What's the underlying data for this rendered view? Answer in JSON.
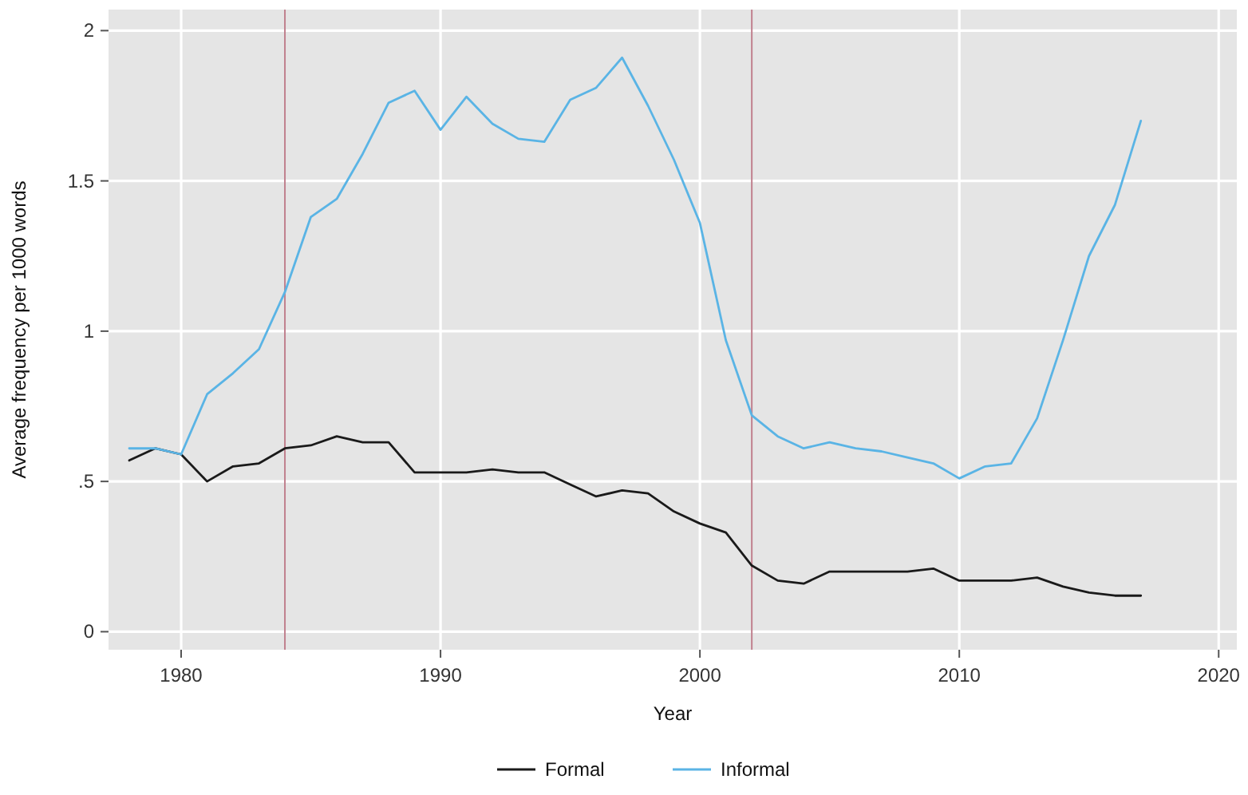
{
  "chart_data": {
    "type": "line",
    "xlabel": "Year",
    "ylabel": "Average frequency per 1000 words",
    "x": [
      1978,
      1979,
      1980,
      1981,
      1982,
      1983,
      1984,
      1985,
      1986,
      1987,
      1988,
      1989,
      1990,
      1991,
      1992,
      1993,
      1994,
      1995,
      1996,
      1997,
      1998,
      1999,
      2000,
      2001,
      2002,
      2003,
      2004,
      2005,
      2006,
      2007,
      2008,
      2009,
      2010,
      2011,
      2012,
      2013,
      2014,
      2015,
      2016,
      2017
    ],
    "series": [
      {
        "name": "Formal",
        "color": "#1a1a1a",
        "values": [
          0.57,
          0.61,
          0.59,
          0.5,
          0.55,
          0.56,
          0.61,
          0.62,
          0.65,
          0.63,
          0.63,
          0.53,
          0.53,
          0.53,
          0.54,
          0.53,
          0.53,
          0.49,
          0.45,
          0.47,
          0.46,
          0.4,
          0.36,
          0.33,
          0.22,
          0.17,
          0.16,
          0.2,
          0.2,
          0.2,
          0.2,
          0.21,
          0.17,
          0.17,
          0.17,
          0.18,
          0.15,
          0.13,
          0.12,
          0.12
        ]
      },
      {
        "name": "Informal",
        "color": "#5ab4e5",
        "values": [
          0.61,
          0.61,
          0.59,
          0.79,
          0.86,
          0.94,
          1.13,
          1.38,
          1.44,
          1.59,
          1.76,
          1.8,
          1.67,
          1.78,
          1.69,
          1.64,
          1.63,
          1.77,
          1.81,
          1.91,
          1.75,
          1.57,
          1.36,
          0.97,
          0.72,
          0.65,
          0.61,
          0.63,
          0.61,
          0.6,
          0.58,
          0.56,
          0.51,
          0.55,
          0.56,
          0.71,
          0.97,
          1.25,
          1.42,
          1.7
        ]
      }
    ],
    "xlim": [
      1977.2,
      2020.7
    ],
    "xticks": [
      1980,
      1990,
      2000,
      2010,
      2020
    ],
    "ylim": [
      -0.06,
      2.07
    ],
    "yticks": [
      {
        "value": 0,
        "label": "0"
      },
      {
        "value": 0.5,
        "label": ".5"
      },
      {
        "value": 1,
        "label": "1"
      },
      {
        "value": 1.5,
        "label": "1.5"
      },
      {
        "value": 2,
        "label": "2"
      }
    ],
    "ref_lines": [
      {
        "axis": "x",
        "value": 1984,
        "color": "#c0808e"
      },
      {
        "axis": "x",
        "value": 2002,
        "color": "#c0808e"
      }
    ],
    "grid": true,
    "legend": "bottom",
    "line_style": "solid"
  }
}
